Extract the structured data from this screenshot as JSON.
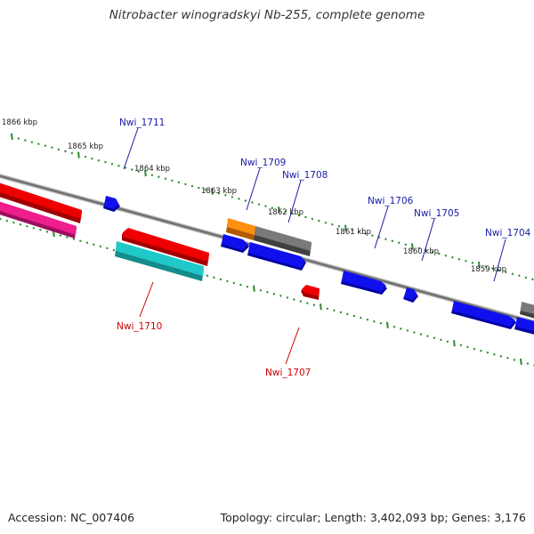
{
  "title": "Nitrobacter winogradskyi Nb-255, complete genome",
  "footer": {
    "accession": "Accession: NC_007406",
    "summary": "Topology: circular; Length: 3,402,093 bp; Genes: 3,176"
  },
  "colors": {
    "backbone": "#808080",
    "ticks": "#2e8b2e",
    "label_top": "#1a1aa6",
    "label_bottom": "#cc0000",
    "gene_red": "#ee0000",
    "gene_pink": "#ee1e8c",
    "gene_cyan": "#20c8c8",
    "gene_blue": "#1010ee",
    "gene_orange": "#ff9010",
    "gene_gray": "#6e6e6e"
  },
  "kbp_labels": [
    {
      "id": "1866",
      "text": "1866 kbp"
    },
    {
      "id": "1865",
      "text": "1865 kbp"
    },
    {
      "id": "1864",
      "text": "1864 kbp"
    },
    {
      "id": "1863",
      "text": "1863 kbp"
    },
    {
      "id": "1862",
      "text": "1862 kbp"
    },
    {
      "id": "1861",
      "text": "1861 kbp"
    },
    {
      "id": "1860",
      "text": "1860 kbp"
    },
    {
      "id": "1859",
      "text": "1859 kbp"
    }
  ],
  "gene_labels": {
    "Nwi_1711": "Nwi_1711",
    "Nwi_1709": "Nwi_1709",
    "Nwi_1708": "Nwi_1708",
    "Nwi_1706": "Nwi_1706",
    "Nwi_1705": "Nwi_1705",
    "Nwi_1704": "Nwi_1704",
    "Nwi_1710": "Nwi_1710",
    "Nwi_1707": "Nwi_1707"
  }
}
